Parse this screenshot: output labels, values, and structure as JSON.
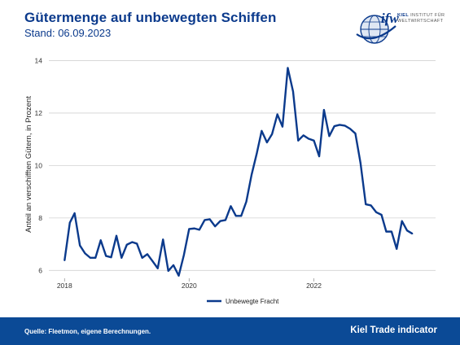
{
  "header": {
    "title": "Gütermenge auf unbewegten Schiffen",
    "subtitle": "Stand: 06.09.2023"
  },
  "logo": {
    "wordmark": "ifw",
    "line1_bold": "KIEL",
    "line1": "INSTITUT FÜR",
    "line2": "WELTWIRTSCHAFT"
  },
  "footer": {
    "source": "Quelle: Fleetmon, eigene Berechnungen.",
    "brand": "Kiel Trade indicator"
  },
  "colors": {
    "series": "#0b3a8c",
    "footer_bg": "#0b4a96",
    "title": "#0b3a8c",
    "grid": "#d2d2d2"
  },
  "chart_data": {
    "type": "line",
    "title": "Gütermenge auf unbewegten Schiffen",
    "xlabel": "",
    "ylabel": "Anteil an verschifften Gütern, in Prozent",
    "x_ticks": [
      "2018",
      "2020",
      "2022"
    ],
    "y_ticks": [
      6,
      8,
      10,
      12,
      14
    ],
    "ylim": [
      5.7,
      14.2
    ],
    "xlim": [
      "2017-10-01",
      "2023-12-15"
    ],
    "grid": true,
    "legend_position": "bottom",
    "series": [
      {
        "name": "Unbewegte Fracht",
        "points": [
          [
            "2018-01-01",
            6.38
          ],
          [
            "2018-02-01",
            7.82
          ],
          [
            "2018-03-01",
            8.18
          ],
          [
            "2018-04-01",
            6.95
          ],
          [
            "2018-05-01",
            6.65
          ],
          [
            "2018-06-01",
            6.48
          ],
          [
            "2018-07-01",
            6.48
          ],
          [
            "2018-08-01",
            7.15
          ],
          [
            "2018-09-01",
            6.55
          ],
          [
            "2018-10-01",
            6.5
          ],
          [
            "2018-11-01",
            7.32
          ],
          [
            "2018-12-01",
            6.48
          ],
          [
            "2019-01-01",
            6.98
          ],
          [
            "2019-02-01",
            7.08
          ],
          [
            "2019-03-01",
            7.02
          ],
          [
            "2019-04-01",
            6.48
          ],
          [
            "2019-05-01",
            6.62
          ],
          [
            "2019-06-01",
            6.35
          ],
          [
            "2019-07-01",
            6.08
          ],
          [
            "2019-08-01",
            7.18
          ],
          [
            "2019-09-01",
            5.98
          ],
          [
            "2019-10-01",
            6.2
          ],
          [
            "2019-11-01",
            5.8
          ],
          [
            "2019-12-01",
            6.58
          ],
          [
            "2020-01-01",
            7.58
          ],
          [
            "2020-02-01",
            7.6
          ],
          [
            "2020-03-01",
            7.55
          ],
          [
            "2020-04-01",
            7.92
          ],
          [
            "2020-05-01",
            7.95
          ],
          [
            "2020-06-01",
            7.68
          ],
          [
            "2020-07-01",
            7.88
          ],
          [
            "2020-08-01",
            7.92
          ],
          [
            "2020-09-01",
            8.45
          ],
          [
            "2020-10-01",
            8.08
          ],
          [
            "2020-11-01",
            8.08
          ],
          [
            "2020-12-01",
            8.62
          ],
          [
            "2021-01-01",
            9.65
          ],
          [
            "2021-02-01",
            10.48
          ],
          [
            "2021-03-01",
            11.32
          ],
          [
            "2021-04-01",
            10.88
          ],
          [
            "2021-05-01",
            11.2
          ],
          [
            "2021-06-01",
            11.95
          ],
          [
            "2021-07-01",
            11.48
          ],
          [
            "2021-08-01",
            13.72
          ],
          [
            "2021-09-01",
            12.82
          ],
          [
            "2021-10-01",
            10.95
          ],
          [
            "2021-11-01",
            11.15
          ],
          [
            "2021-12-01",
            11.02
          ],
          [
            "2022-01-01",
            10.95
          ],
          [
            "2022-02-01",
            10.35
          ],
          [
            "2022-03-01",
            12.12
          ],
          [
            "2022-04-01",
            11.12
          ],
          [
            "2022-05-01",
            11.5
          ],
          [
            "2022-06-01",
            11.55
          ],
          [
            "2022-07-01",
            11.52
          ],
          [
            "2022-08-01",
            11.4
          ],
          [
            "2022-09-01",
            11.22
          ],
          [
            "2022-10-01",
            10.1
          ],
          [
            "2022-11-01",
            8.52
          ],
          [
            "2022-12-01",
            8.48
          ],
          [
            "2023-01-01",
            8.22
          ],
          [
            "2023-02-01",
            8.12
          ],
          [
            "2023-03-01",
            7.48
          ],
          [
            "2023-04-01",
            7.48
          ],
          [
            "2023-05-01",
            6.82
          ],
          [
            "2023-06-01",
            7.88
          ],
          [
            "2023-07-01",
            7.52
          ],
          [
            "2023-08-01",
            7.4
          ]
        ]
      }
    ]
  }
}
